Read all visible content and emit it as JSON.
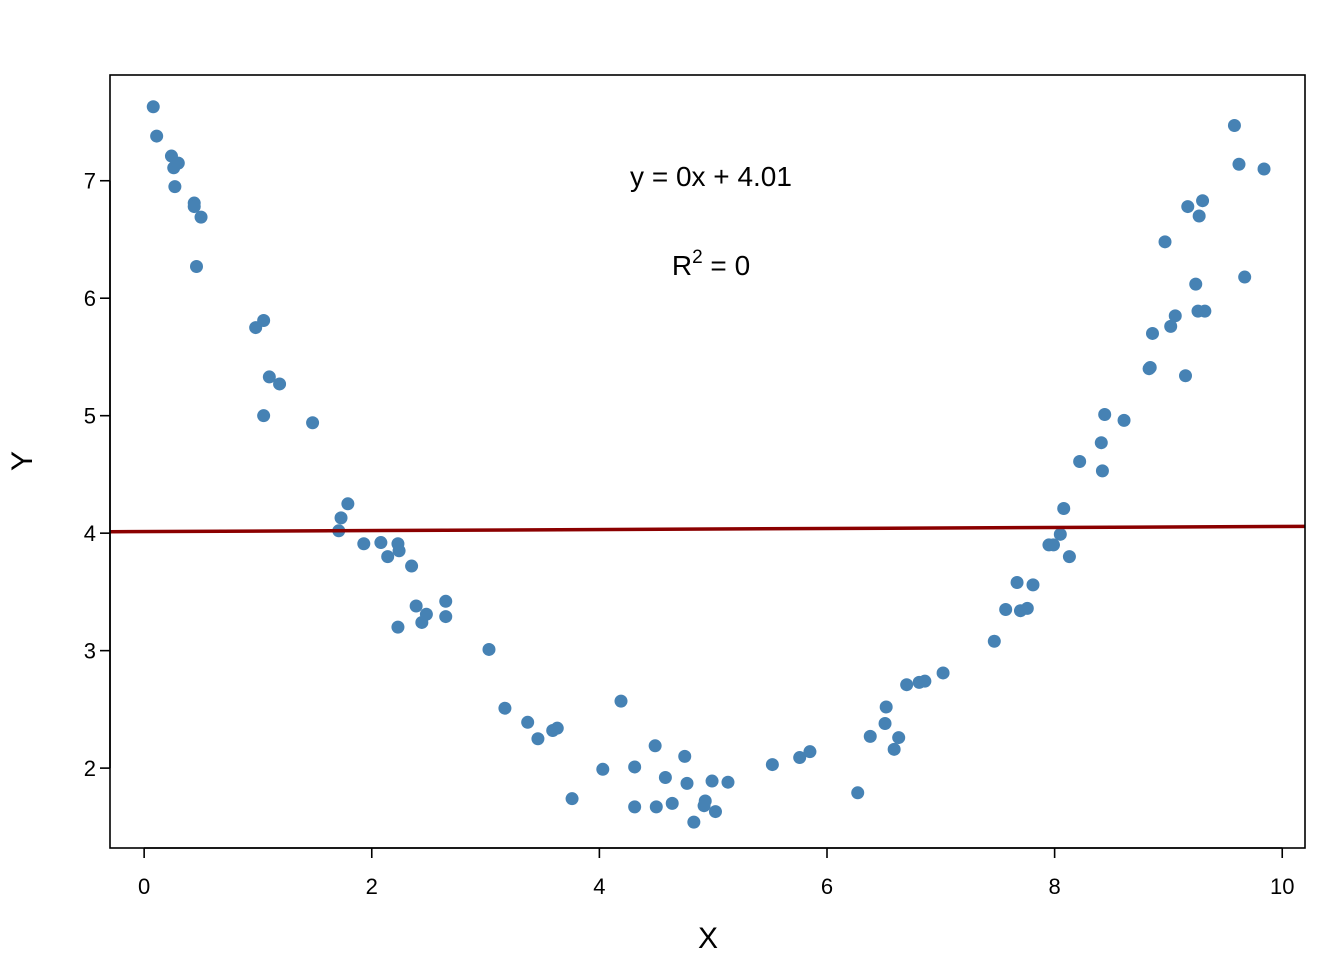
{
  "chart_data": {
    "type": "scatter",
    "title": "",
    "xlabel": "X",
    "ylabel": "Y",
    "xlim": [
      -0.3,
      10.2
    ],
    "ylim": [
      1.32,
      7.9
    ],
    "xticks": [
      0,
      2,
      4,
      6,
      8,
      10
    ],
    "yticks": [
      2,
      3,
      4,
      5,
      6,
      7
    ],
    "grid": false,
    "point_color": "#4682b4",
    "line_color": "#8b0000",
    "annotations": {
      "equation": "y = 0x + 4.01",
      "r2_prefix": "R",
      "r2_superscript": "2",
      "r2_suffix": " = 0"
    },
    "fit_line": {
      "x": [
        -0.3,
        10.2
      ],
      "y": [
        4.012,
        4.058
      ]
    },
    "series": [
      {
        "points": [
          [
            0.08,
            7.63
          ],
          [
            0.11,
            7.38
          ],
          [
            0.24,
            7.21
          ],
          [
            0.26,
            7.11
          ],
          [
            0.27,
            6.95
          ],
          [
            0.3,
            7.15
          ],
          [
            0.44,
            6.81
          ],
          [
            0.44,
            6.78
          ],
          [
            0.46,
            6.27
          ],
          [
            0.5,
            6.69
          ],
          [
            0.98,
            5.75
          ],
          [
            1.05,
            5.81
          ],
          [
            1.05,
            5.0
          ],
          [
            1.1,
            5.33
          ],
          [
            1.19,
            5.27
          ],
          [
            1.48,
            4.94
          ],
          [
            1.71,
            4.02
          ],
          [
            1.73,
            4.13
          ],
          [
            1.79,
            4.25
          ],
          [
            1.93,
            3.91
          ],
          [
            2.08,
            3.92
          ],
          [
            2.14,
            3.8
          ],
          [
            2.23,
            3.91
          ],
          [
            2.24,
            3.85
          ],
          [
            2.23,
            3.2
          ],
          [
            2.35,
            3.72
          ],
          [
            2.39,
            3.38
          ],
          [
            2.44,
            3.24
          ],
          [
            2.48,
            3.31
          ],
          [
            2.65,
            3.42
          ],
          [
            2.65,
            3.29
          ],
          [
            3.03,
            3.01
          ],
          [
            3.17,
            2.51
          ],
          [
            3.37,
            2.39
          ],
          [
            3.46,
            2.25
          ],
          [
            3.59,
            2.32
          ],
          [
            3.63,
            2.34
          ],
          [
            3.76,
            1.74
          ],
          [
            4.03,
            1.99
          ],
          [
            4.19,
            2.57
          ],
          [
            4.31,
            1.67
          ],
          [
            4.31,
            2.01
          ],
          [
            4.49,
            2.19
          ],
          [
            4.5,
            1.67
          ],
          [
            4.58,
            1.92
          ],
          [
            4.64,
            1.7
          ],
          [
            4.75,
            2.1
          ],
          [
            4.77,
            1.87
          ],
          [
            4.83,
            1.54
          ],
          [
            4.92,
            1.68
          ],
          [
            4.93,
            1.72
          ],
          [
            4.99,
            1.89
          ],
          [
            5.02,
            1.63
          ],
          [
            5.13,
            1.88
          ],
          [
            5.52,
            2.03
          ],
          [
            5.76,
            2.09
          ],
          [
            5.85,
            2.14
          ],
          [
            6.27,
            1.79
          ],
          [
            6.38,
            2.27
          ],
          [
            6.51,
            2.38
          ],
          [
            6.52,
            2.52
          ],
          [
            6.59,
            2.16
          ],
          [
            6.63,
            2.26
          ],
          [
            6.7,
            2.71
          ],
          [
            6.81,
            2.73
          ],
          [
            6.86,
            2.74
          ],
          [
            7.02,
            2.81
          ],
          [
            7.47,
            3.08
          ],
          [
            7.57,
            3.35
          ],
          [
            7.67,
            3.58
          ],
          [
            7.7,
            3.34
          ],
          [
            7.76,
            3.36
          ],
          [
            7.81,
            3.56
          ],
          [
            7.95,
            3.9
          ],
          [
            7.99,
            3.9
          ],
          [
            8.05,
            3.99
          ],
          [
            8.08,
            4.21
          ],
          [
            8.13,
            3.8
          ],
          [
            8.22,
            4.61
          ],
          [
            8.41,
            4.77
          ],
          [
            8.42,
            4.53
          ],
          [
            8.44,
            5.01
          ],
          [
            8.61,
            4.96
          ],
          [
            8.83,
            5.4
          ],
          [
            8.84,
            5.41
          ],
          [
            8.86,
            5.7
          ],
          [
            8.97,
            6.48
          ],
          [
            9.02,
            5.76
          ],
          [
            9.06,
            5.85
          ],
          [
            9.15,
            5.34
          ],
          [
            9.17,
            6.78
          ],
          [
            9.24,
            6.12
          ],
          [
            9.26,
            5.89
          ],
          [
            9.27,
            6.7
          ],
          [
            9.3,
            6.83
          ],
          [
            9.32,
            5.89
          ],
          [
            9.58,
            7.47
          ],
          [
            9.62,
            7.14
          ],
          [
            9.67,
            6.18
          ],
          [
            9.84,
            7.1
          ]
        ]
      }
    ]
  }
}
